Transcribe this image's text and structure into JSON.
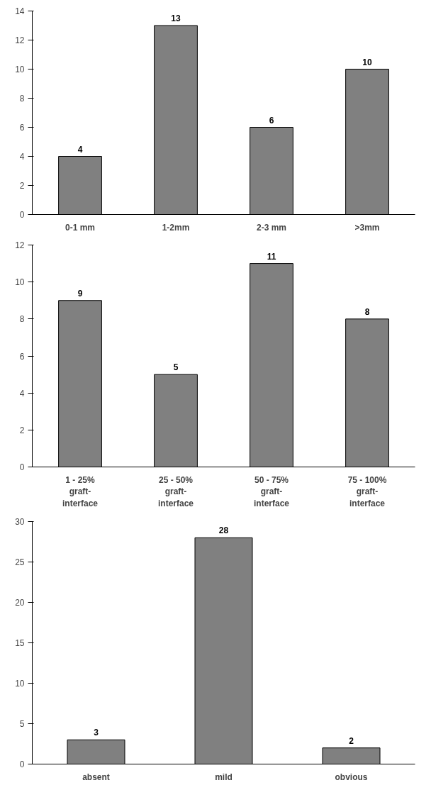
{
  "chart_data": [
    {
      "type": "bar",
      "categories": [
        "0-1 mm",
        "1-2mm",
        "2-3 mm",
        ">3mm"
      ],
      "values": [
        4,
        13,
        6,
        10
      ],
      "color": "#808080",
      "ylim": [
        0,
        14
      ],
      "yticks": [
        0,
        2,
        4,
        6,
        8,
        10,
        12,
        14
      ],
      "data_labels": true,
      "grid": false
    },
    {
      "type": "bar",
      "categories": [
        "1 - 25%\ngraft-\ninterface",
        "25 - 50%\ngraft-\ninterface",
        "50 - 75%\ngraft-\ninterface",
        "75 - 100%\ngraft-\ninterface"
      ],
      "values": [
        9,
        5,
        11,
        8
      ],
      "color": "#808080",
      "ylim": [
        0,
        12
      ],
      "yticks": [
        0,
        2,
        4,
        6,
        8,
        10,
        12
      ],
      "data_labels": true,
      "grid": false
    },
    {
      "type": "bar",
      "categories": [
        "absent",
        "mild",
        "obvious"
      ],
      "values": [
        3,
        28,
        2
      ],
      "color": "#808080",
      "ylim": [
        0,
        30
      ],
      "yticks": [
        0,
        5,
        10,
        15,
        20,
        25,
        30
      ],
      "data_labels": true,
      "grid": false
    }
  ]
}
